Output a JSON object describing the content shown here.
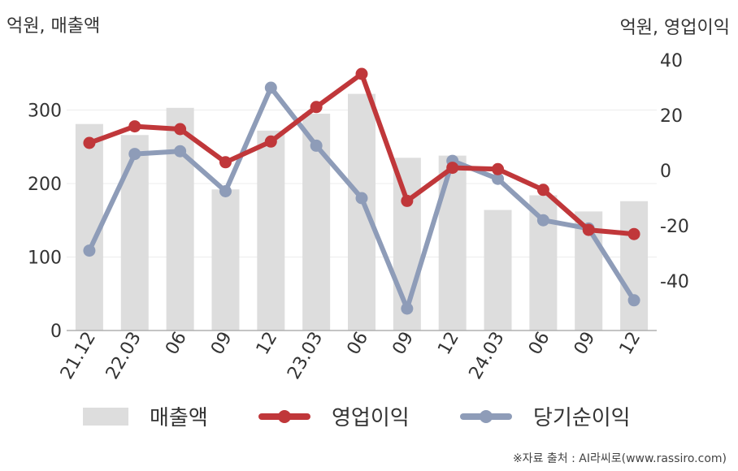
{
  "chart_data": {
    "type": "bar+line",
    "categories": [
      "21.12",
      "22.03",
      "06",
      "09",
      "12",
      "23.03",
      "06",
      "09",
      "12",
      "24.03",
      "06",
      "09",
      "12"
    ],
    "left_axis": {
      "label": "억원, 매출액",
      "ticks": [
        0,
        100,
        200,
        300
      ],
      "range": [
        0,
        370
      ]
    },
    "right_axis": {
      "label": "억원, 영업이익",
      "ticks": [
        40,
        20,
        0,
        -20,
        -40
      ],
      "range": [
        -58,
        40
      ]
    },
    "series": [
      {
        "name": "매출액",
        "type": "bar",
        "axis": "left",
        "color": "#dddddd",
        "values": [
          281,
          266,
          303,
          192,
          272,
          295,
          322,
          235,
          238,
          164,
          184,
          162,
          176
        ]
      },
      {
        "name": "영업이익",
        "type": "line",
        "axis": "right",
        "color": "#c0373a",
        "values": [
          10,
          16,
          15,
          3,
          10.5,
          23,
          35,
          -11,
          1,
          0.5,
          -7,
          -21.5,
          -23
        ]
      },
      {
        "name": "당기순이익",
        "type": "line",
        "axis": "right",
        "color": "#8e9cb8",
        "values": [
          -29,
          6,
          7,
          -7.5,
          30,
          9,
          -10,
          -50,
          3.5,
          -3,
          -18,
          -21,
          -47
        ]
      }
    ],
    "legend": {
      "position": "bottom"
    },
    "grid": true
  },
  "source": "※자료 출처 : AI라씨로(www.rassiro.com)"
}
